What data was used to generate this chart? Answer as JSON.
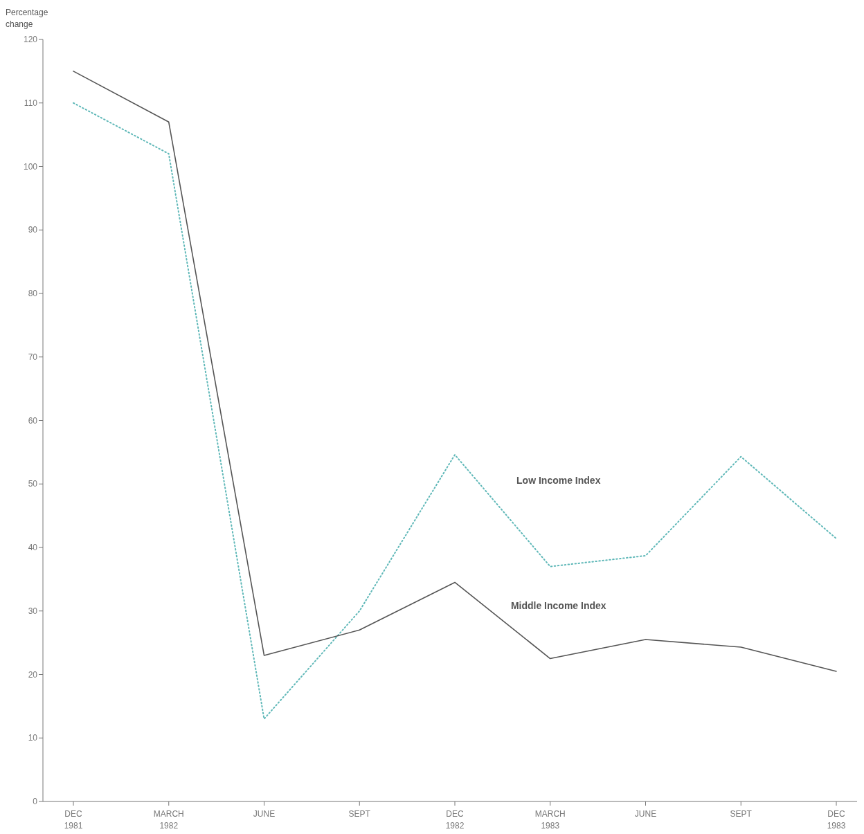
{
  "chart_data": {
    "type": "line",
    "ylabel": "Percentage change",
    "categories": [
      "DEC 1981",
      "MARCH 1982",
      "JUNE",
      "SEPT",
      "DEC 1982",
      "MARCH 1983",
      "JUNE",
      "SEPT",
      "DEC 1983"
    ],
    "ylim": [
      0,
      120
    ],
    "yticks": [
      0,
      10,
      20,
      30,
      40,
      50,
      60,
      70,
      80,
      90,
      100,
      110,
      120
    ],
    "grid": false,
    "marker": "none",
    "series": [
      {
        "name": "Low Income Index",
        "color": "#5fb8b8",
        "line_style": "dotted",
        "values": [
          110,
          102,
          13,
          30,
          54.6,
          37,
          38.7,
          54.3,
          41.4
        ]
      },
      {
        "name": "Middle Income Index",
        "color": "#555555",
        "line_style": "solid",
        "values": [
          115,
          107,
          23,
          27,
          34.5,
          22.5,
          25.5,
          24.3,
          20.5
        ]
      }
    ]
  }
}
